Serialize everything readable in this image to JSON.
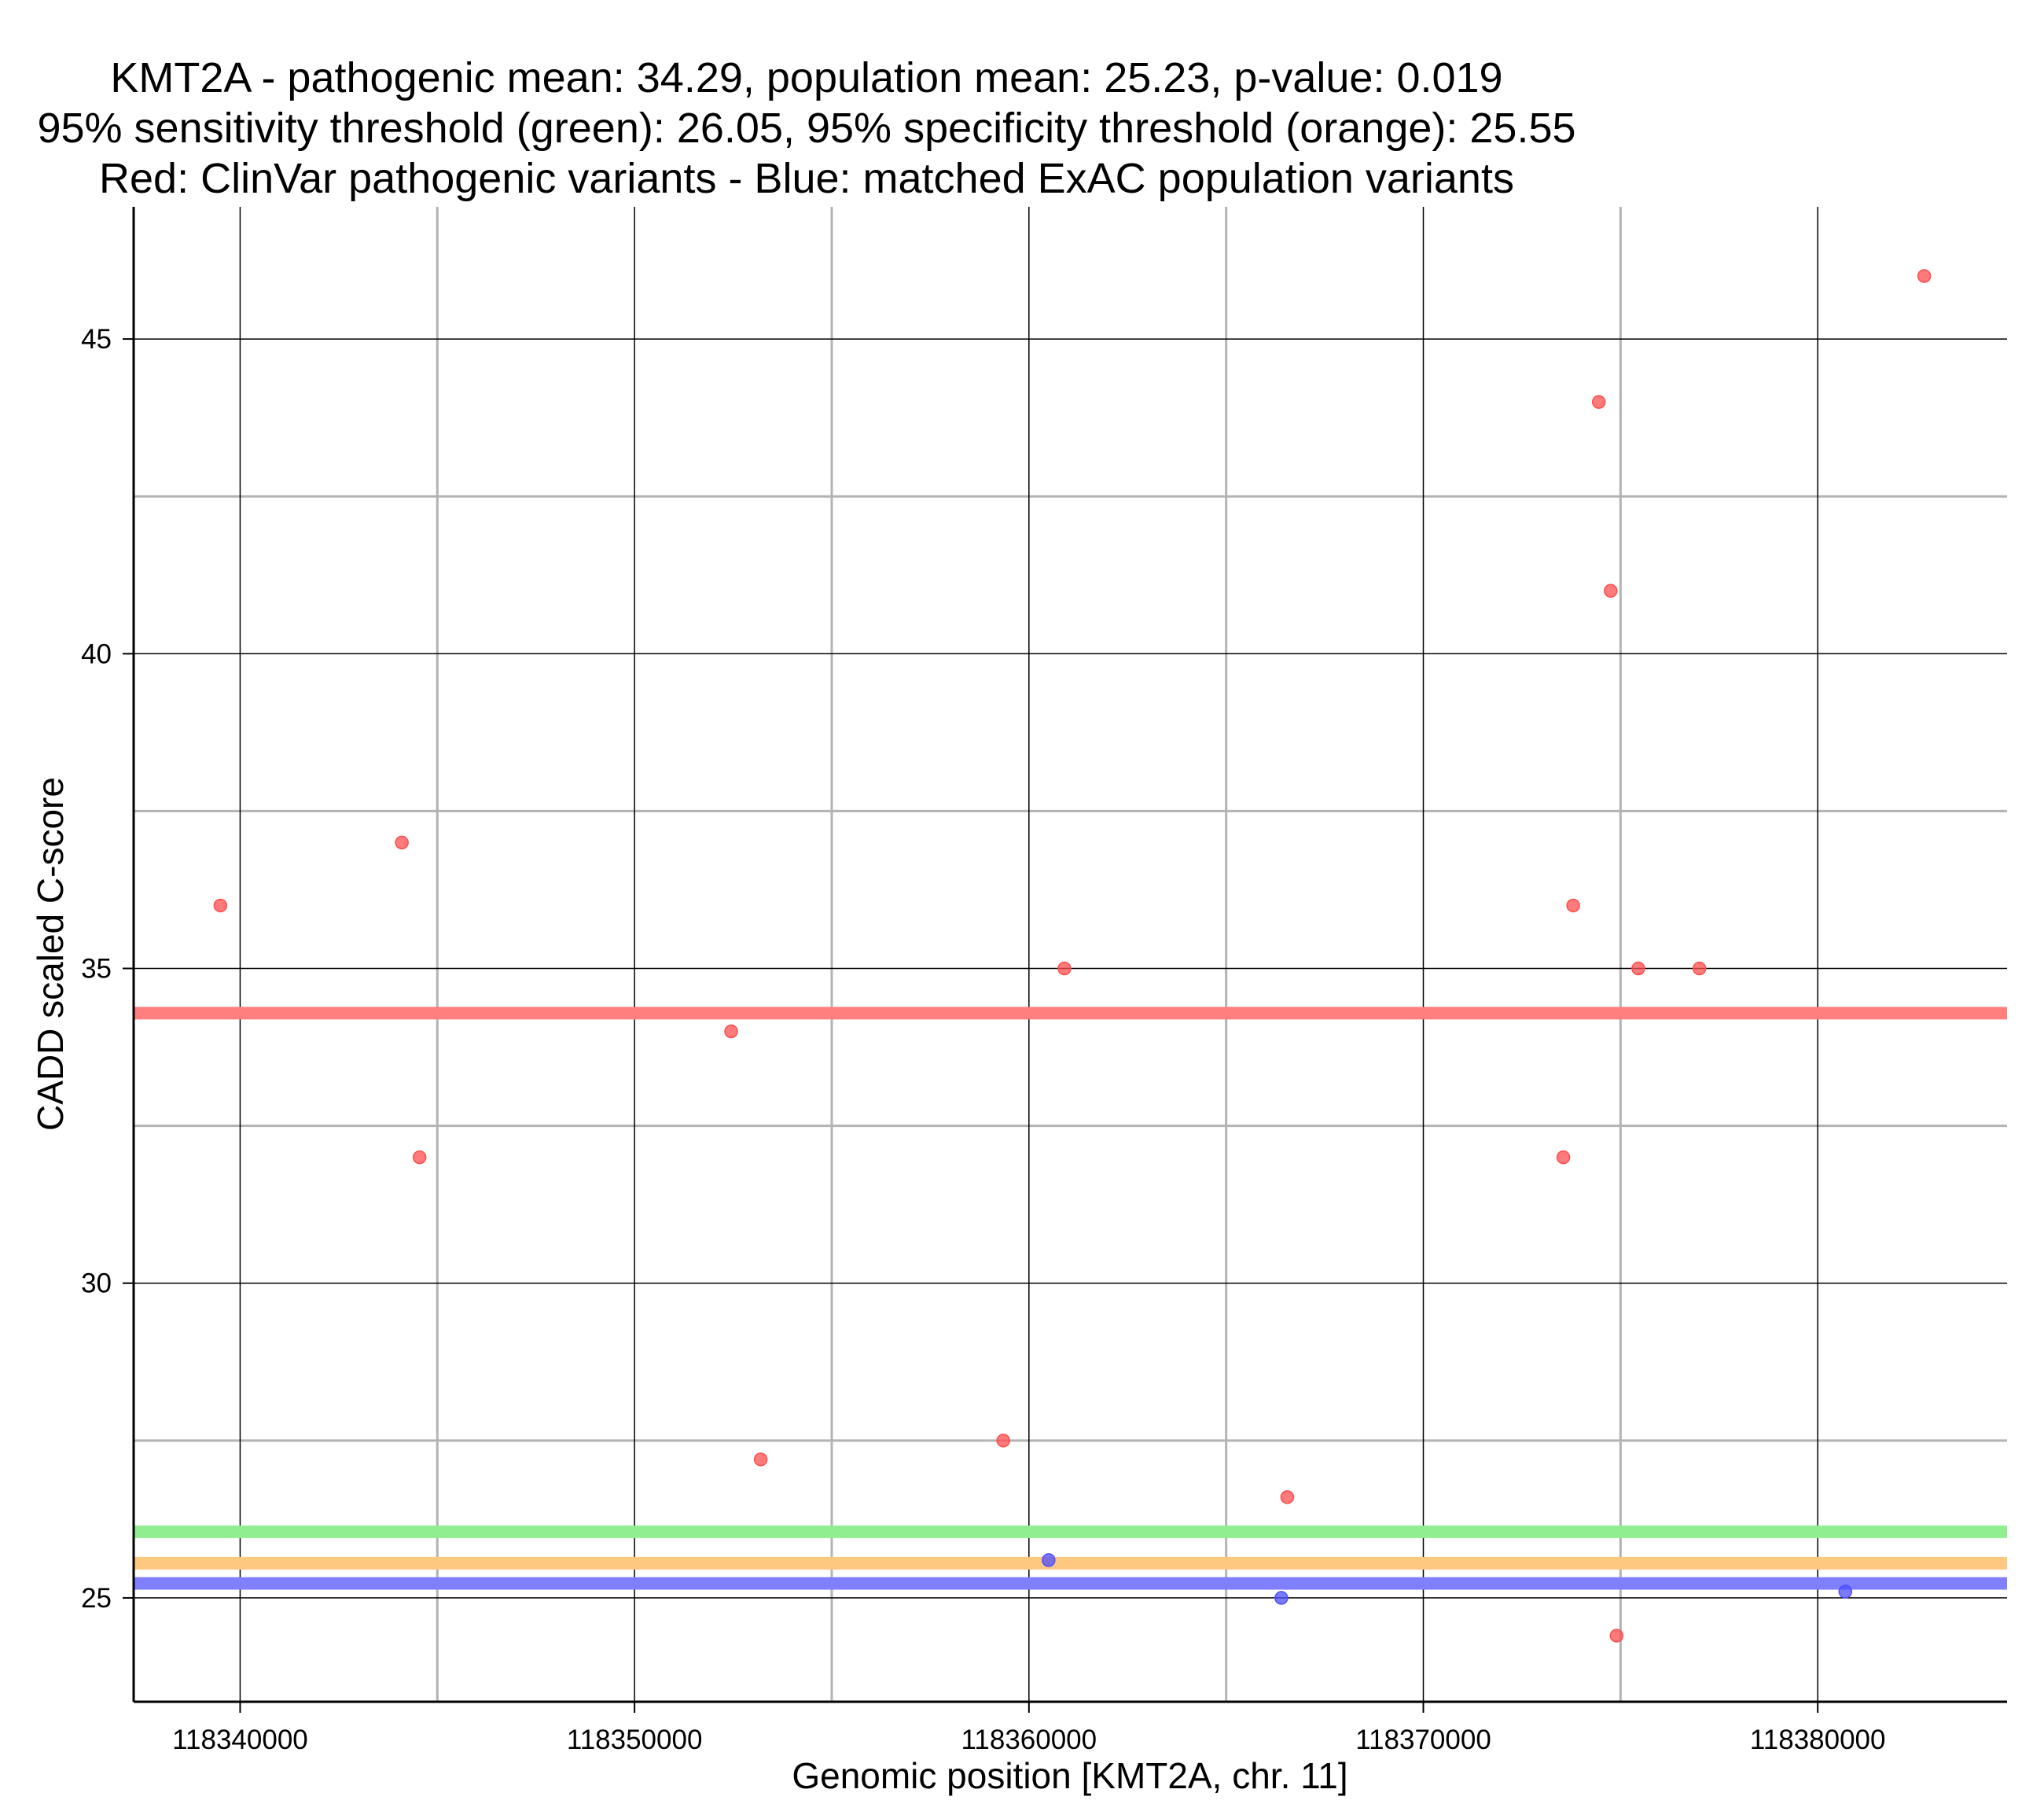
{
  "chart_data": {
    "type": "scatter",
    "title_lines": [
      "KMT2A - pathogenic mean: 34.29, population mean: 25.23, p-value: 0.019",
      "95% sensitivity threshold (green): 26.05, 95% specificity threshold (orange): 25.55",
      "Red: ClinVar pathogenic variants - Blue: matched ExAC population variants"
    ],
    "xlabel": "Genomic position [KMT2A, chr. 11]",
    "ylabel": "CADD scaled C-score",
    "xlim": [
      118337300,
      118384800
    ],
    "ylim": [
      23.35,
      47.1
    ],
    "x_major_ticks": [
      118340000,
      118350000,
      118360000,
      118370000,
      118380000
    ],
    "x_tick_labels": [
      "118340000",
      "118350000",
      "118360000",
      "118370000",
      "118380000"
    ],
    "x_minor_ticks": [
      118345000,
      118355000,
      118365000,
      118375000
    ],
    "y_major_ticks": [
      25,
      30,
      35,
      40,
      45
    ],
    "y_tick_labels": [
      "25",
      "30",
      "35",
      "40",
      "45"
    ],
    "y_minor_ticks": [
      27.5,
      32.5,
      37.5,
      42.5
    ],
    "reference_lines": [
      {
        "name": "pathogenic mean",
        "value": 34.29,
        "color": "#ff7f7f"
      },
      {
        "name": "95% sensitivity threshold",
        "value": 26.05,
        "color": "#90ee90"
      },
      {
        "name": "95% specificity threshold",
        "value": 25.55,
        "color": "#ffc880"
      },
      {
        "name": "population mean",
        "value": 25.23,
        "color": "#8080ff"
      }
    ],
    "series": [
      {
        "name": "ClinVar pathogenic variants",
        "color": "#ff4d4d",
        "points": [
          {
            "x": 118339500,
            "y": 36
          },
          {
            "x": 118344100,
            "y": 37
          },
          {
            "x": 118344550,
            "y": 32
          },
          {
            "x": 118352450,
            "y": 34
          },
          {
            "x": 118353200,
            "y": 27.2
          },
          {
            "x": 118359350,
            "y": 27.5
          },
          {
            "x": 118360900,
            "y": 35
          },
          {
            "x": 118366550,
            "y": 26.6
          },
          {
            "x": 118373550,
            "y": 32
          },
          {
            "x": 118373800,
            "y": 36
          },
          {
            "x": 118374450,
            "y": 44
          },
          {
            "x": 118374750,
            "y": 41
          },
          {
            "x": 118374900,
            "y": 24.4
          },
          {
            "x": 118375450,
            "y": 35
          },
          {
            "x": 118377000,
            "y": 35
          },
          {
            "x": 118382700,
            "y": 46
          }
        ]
      },
      {
        "name": "matched ExAC population variants",
        "color": "#4d4dff",
        "points": [
          {
            "x": 118360500,
            "y": 25.6
          },
          {
            "x": 118366400,
            "y": 25
          },
          {
            "x": 118380700,
            "y": 25.1
          }
        ]
      }
    ],
    "grid": true,
    "major_grid_color": "#000000",
    "minor_grid_color": "#b3b3b3"
  }
}
